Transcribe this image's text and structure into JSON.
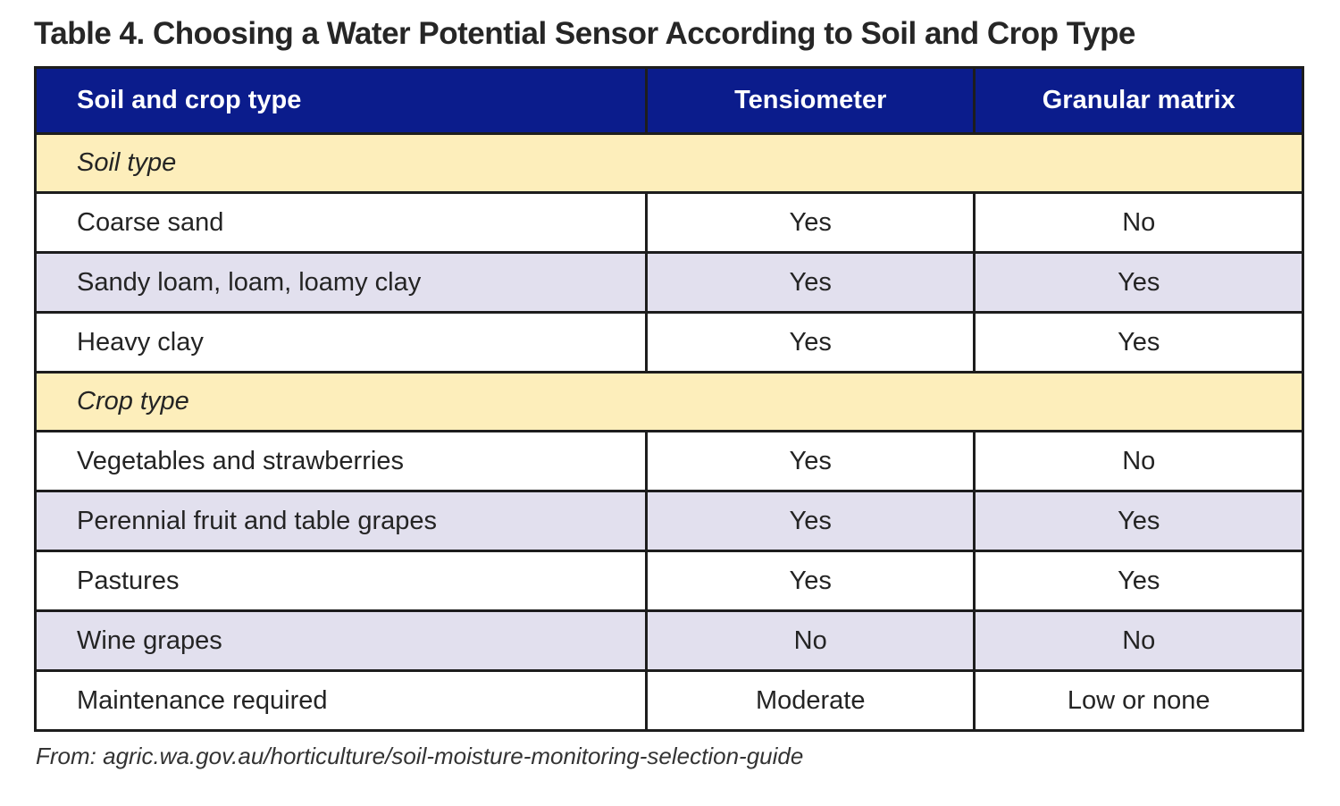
{
  "page": {
    "title": "Table 4. Choosing a Water Potential Sensor According to Soil and Crop Type",
    "source_note": "From: agric.wa.gov.au/horticulture/soil-moisture-monitoring-selection-guide"
  },
  "table": {
    "columns": [
      "Soil and crop type",
      "Tensiometer",
      "Granular matrix"
    ],
    "rows": [
      {
        "type": "section",
        "label": "Soil type"
      },
      {
        "type": "data",
        "label": "Coarse sand",
        "tensiometer": "Yes",
        "granular_matrix": "No"
      },
      {
        "type": "data",
        "label": "Sandy loam, loam, loamy clay",
        "tensiometer": "Yes",
        "granular_matrix": "Yes"
      },
      {
        "type": "data",
        "label": "Heavy clay",
        "tensiometer": "Yes",
        "granular_matrix": "Yes"
      },
      {
        "type": "section",
        "label": "Crop type"
      },
      {
        "type": "data",
        "label": "Vegetables and strawberries",
        "tensiometer": "Yes",
        "granular_matrix": "No"
      },
      {
        "type": "data",
        "label": "Perennial fruit and table grapes",
        "tensiometer": "Yes",
        "granular_matrix": "Yes"
      },
      {
        "type": "data",
        "label": "Pastures",
        "tensiometer": "Yes",
        "granular_matrix": "Yes"
      },
      {
        "type": "data",
        "label": "Wine grapes",
        "tensiometer": "No",
        "granular_matrix": "No"
      },
      {
        "type": "data",
        "label": "Maintenance required",
        "tensiometer": "Moderate",
        "granular_matrix": "Low or none"
      }
    ]
  },
  "colors": {
    "header_bg": "#0b1c8c",
    "header_text": "#ffffff",
    "section_bg": "#fdeebb",
    "row_bg": "#ffffff",
    "row_alt_bg": "#e2e0ee",
    "border": "#1d1d1d",
    "text": "#242424"
  }
}
